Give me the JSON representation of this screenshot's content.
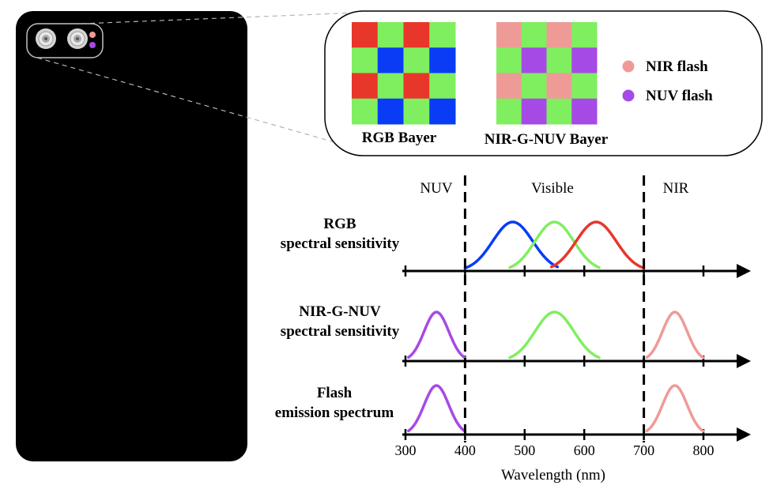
{
  "colors": {
    "red": "#e8362a",
    "green": "#7fef5f",
    "blue": "#0a3cf5",
    "nir": "#ee9b97",
    "nuv": "#a64ae6",
    "phone": "#000000"
  },
  "inset": {
    "rgb_caption": "RGB Bayer",
    "nirgnuv_caption": "NIR-G-NUV Bayer",
    "rgb_grid": [
      [
        "red",
        "green",
        "red",
        "green"
      ],
      [
        "green",
        "blue",
        "green",
        "blue"
      ],
      [
        "red",
        "green",
        "red",
        "green"
      ],
      [
        "green",
        "blue",
        "green",
        "blue"
      ]
    ],
    "nirgnuv_grid": [
      [
        "nir",
        "green",
        "nir",
        "green"
      ],
      [
        "green",
        "nuv",
        "green",
        "nuv"
      ],
      [
        "nir",
        "green",
        "nir",
        "green"
      ],
      [
        "green",
        "nuv",
        "green",
        "nuv"
      ]
    ],
    "legend": [
      {
        "label": "NIR flash",
        "color": "nir"
      },
      {
        "label": "NUV flash",
        "color": "nuv"
      }
    ]
  },
  "regions": {
    "nuv": "NUV",
    "visible": "Visible",
    "nir": "NIR"
  },
  "rows": [
    {
      "label_line1": "RGB",
      "label_line2": "spectral sensitivity"
    },
    {
      "label_line1": "NIR-G-NUV",
      "label_line2": "spectral sensitivity"
    },
    {
      "label_line1": "Flash",
      "label_line2": "emission spectrum"
    }
  ],
  "chart_data": {
    "type": "line",
    "xlabel": "Wavelength (nm)",
    "x_ticks": [
      300,
      400,
      500,
      600,
      700,
      800
    ],
    "boundaries": [
      400,
      700
    ],
    "panels": [
      {
        "label": "RGB spectral sensitivity",
        "curves": [
          {
            "color": "blue",
            "center": 480,
            "from": 400,
            "to": 555
          },
          {
            "color": "green",
            "center": 550,
            "from": 475,
            "to": 625
          },
          {
            "color": "red",
            "center": 620,
            "from": 545,
            "to": 700
          }
        ]
      },
      {
        "label": "NIR-G-NUV spectral sensitivity",
        "curves": [
          {
            "color": "nuv",
            "center": 352,
            "from": 305,
            "to": 400
          },
          {
            "color": "green",
            "center": 550,
            "from": 475,
            "to": 625
          },
          {
            "color": "nir",
            "center": 752,
            "from": 705,
            "to": 800
          }
        ]
      },
      {
        "label": "Flash emission spectrum",
        "curves": [
          {
            "color": "nuv",
            "center": 352,
            "from": 305,
            "to": 400
          },
          {
            "color": "nir",
            "center": 752,
            "from": 705,
            "to": 800
          }
        ]
      }
    ]
  }
}
